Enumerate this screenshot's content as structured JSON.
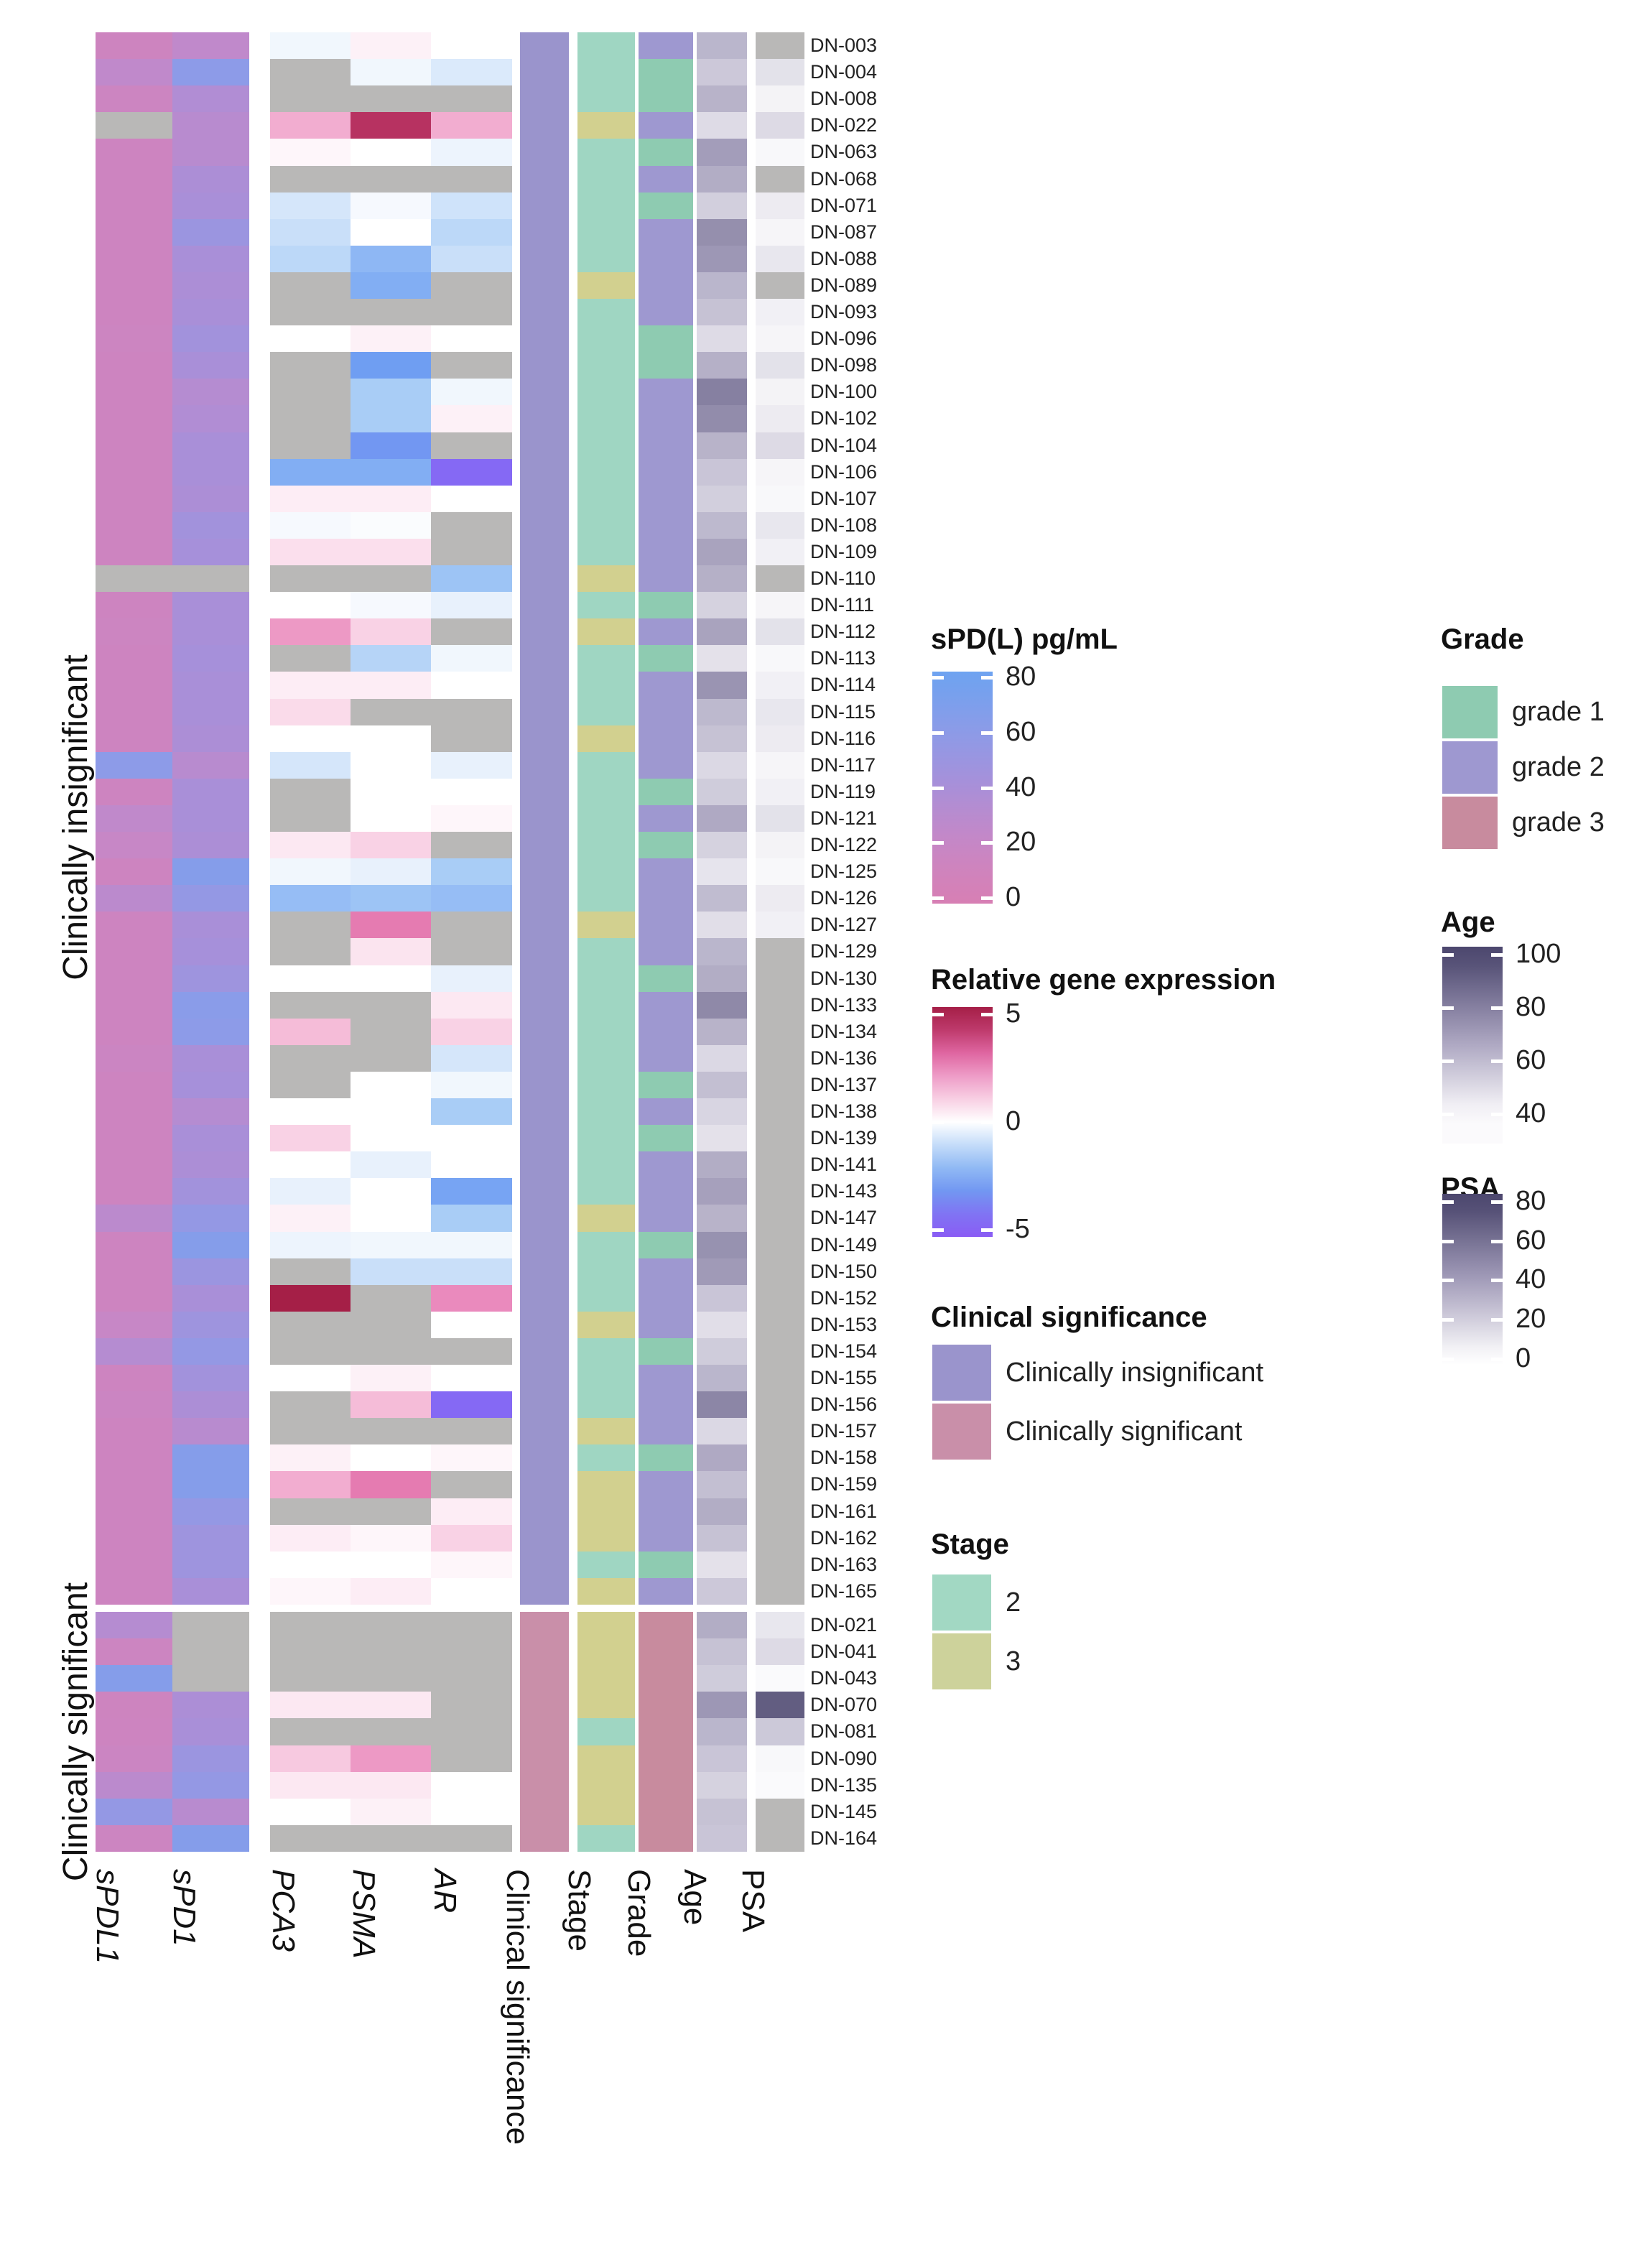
{
  "figure": {
    "left_group_labels": [
      "Clinically insignificant",
      "Clinically significant"
    ]
  },
  "chart_data": {
    "type": "heatmap",
    "title": "",
    "columns": [
      {
        "key": "spdl1",
        "label": "sPDL1",
        "italic": true,
        "scale": "spdl"
      },
      {
        "key": "spd1",
        "label": "sPD1",
        "italic": true,
        "scale": "spdl"
      },
      {
        "key": "pca3",
        "label": "PCA3",
        "italic": true,
        "scale": "gene"
      },
      {
        "key": "psma",
        "label": "PSMA",
        "italic": true,
        "scale": "gene"
      },
      {
        "key": "ar",
        "label": "AR",
        "italic": true,
        "scale": "gene"
      },
      {
        "key": "clinsig",
        "label": "Clinical significance",
        "italic": false,
        "scale": "clinsig"
      },
      {
        "key": "stage",
        "label": "Stage",
        "italic": false,
        "scale": "stage"
      },
      {
        "key": "grade",
        "label": "Grade",
        "italic": false,
        "scale": "grade"
      },
      {
        "key": "age",
        "label": "Age",
        "italic": false,
        "scale": "age"
      },
      {
        "key": "psa",
        "label": "PSA",
        "italic": false,
        "scale": "psa"
      }
    ],
    "groups": [
      {
        "id": 1,
        "label": "Clinically insignificant"
      },
      {
        "id": 2,
        "label": "Clinically significant"
      }
    ],
    "row_format": [
      "id",
      "group",
      "spdl1",
      "spd1",
      "pca3",
      "psma",
      "ar",
      "stage",
      "grade",
      "age",
      "psa"
    ],
    "rows": [
      [
        "DN-003",
        1,
        12,
        25,
        -0.3,
        0.3,
        0,
        2,
        2,
        62,
        null
      ],
      [
        "DN-004",
        1,
        25,
        60,
        null,
        -0.3,
        -0.7,
        2,
        1,
        56,
        12
      ],
      [
        "DN-008",
        1,
        14,
        35,
        null,
        null,
        null,
        2,
        1,
        63,
        5
      ],
      [
        "DN-022",
        1,
        null,
        30,
        1.8,
        4.5,
        1.8,
        3,
        2,
        50,
        15
      ],
      [
        "DN-063",
        1,
        13,
        30,
        0.2,
        0,
        -0.4,
        2,
        1,
        70,
        3
      ],
      [
        "DN-068",
        1,
        13,
        38,
        null,
        null,
        null,
        2,
        2,
        65,
        null
      ],
      [
        "DN-071",
        1,
        13,
        40,
        -0.8,
        -0.2,
        -0.9,
        2,
        1,
        54,
        8
      ],
      [
        "DN-087",
        1,
        13,
        50,
        -1,
        0,
        -1.2,
        2,
        2,
        75,
        4
      ],
      [
        "DN-088",
        1,
        13,
        40,
        -1.2,
        -2.2,
        -1,
        2,
        2,
        72,
        10
      ],
      [
        "DN-089",
        1,
        13,
        38,
        null,
        -2.5,
        null,
        3,
        2,
        62,
        null
      ],
      [
        "DN-093",
        1,
        13,
        40,
        null,
        null,
        null,
        2,
        2,
        58,
        6
      ],
      [
        "DN-096",
        1,
        14,
        45,
        0,
        0.3,
        0,
        2,
        1,
        50,
        4
      ],
      [
        "DN-098",
        1,
        13,
        40,
        null,
        -3,
        null,
        2,
        1,
        64,
        12
      ],
      [
        "DN-100",
        1,
        13,
        32,
        null,
        -1.5,
        -0.3,
        2,
        2,
        80,
        5
      ],
      [
        "DN-102",
        1,
        13,
        35,
        null,
        -1.5,
        0.3,
        2,
        2,
        76,
        8
      ],
      [
        "DN-104",
        1,
        13,
        40,
        null,
        -3.2,
        null,
        2,
        2,
        63,
        15
      ],
      [
        "DN-106",
        1,
        13,
        40,
        -2.5,
        -2.5,
        -4.6,
        2,
        2,
        57,
        4
      ],
      [
        "DN-107",
        1,
        13,
        38,
        0.4,
        0.4,
        0,
        2,
        2,
        54,
        3
      ],
      [
        "DN-108",
        1,
        13,
        45,
        -0.2,
        -0.1,
        null,
        2,
        2,
        61,
        10
      ],
      [
        "DN-109",
        1,
        13,
        42,
        0.7,
        0.7,
        null,
        2,
        2,
        68,
        6
      ],
      [
        "DN-110",
        1,
        null,
        null,
        null,
        null,
        -1.8,
        3,
        2,
        64,
        null
      ],
      [
        "DN-111",
        1,
        13,
        40,
        0,
        -0.2,
        -0.5,
        2,
        1,
        53,
        4
      ],
      [
        "DN-112",
        1,
        14,
        40,
        2.2,
        1,
        null,
        3,
        2,
        68,
        12
      ],
      [
        "DN-113",
        1,
        13,
        42,
        null,
        -1.3,
        -0.3,
        2,
        1,
        48,
        3
      ],
      [
        "DN-114",
        1,
        13,
        40,
        0.4,
        0.4,
        0,
        2,
        2,
        73,
        6
      ],
      [
        "DN-115",
        1,
        13,
        40,
        0.8,
        null,
        null,
        2,
        2,
        61,
        10
      ],
      [
        "DN-116",
        1,
        13,
        38,
        0,
        0,
        null,
        3,
        2,
        58,
        8
      ],
      [
        "DN-117",
        1,
        60,
        30,
        -0.8,
        0,
        -0.5,
        2,
        2,
        51,
        4
      ],
      [
        "DN-119",
        1,
        13,
        40,
        null,
        0,
        0,
        2,
        1,
        55,
        6
      ],
      [
        "DN-121",
        1,
        25,
        40,
        null,
        0,
        0.2,
        2,
        2,
        66,
        12
      ],
      [
        "DN-122",
        1,
        20,
        38,
        0.5,
        1,
        null,
        2,
        1,
        53,
        5
      ],
      [
        "DN-125",
        1,
        13,
        65,
        -0.3,
        -0.5,
        -1.5,
        2,
        2,
        47,
        3
      ],
      [
        "DN-126",
        1,
        28,
        55,
        -2,
        -1.8,
        -2,
        2,
        2,
        60,
        8
      ],
      [
        "DN-127",
        1,
        13,
        40,
        null,
        2.8,
        null,
        3,
        2,
        49,
        6
      ],
      [
        "DN-129",
        1,
        13,
        42,
        null,
        0.6,
        null,
        2,
        2,
        62,
        null
      ],
      [
        "DN-130",
        1,
        13,
        48,
        0,
        0,
        -0.5,
        2,
        1,
        65,
        null
      ],
      [
        "DN-133",
        1,
        13,
        62,
        null,
        null,
        0.5,
        2,
        2,
        77,
        null
      ],
      [
        "DN-134",
        1,
        13,
        60,
        1.5,
        null,
        1,
        2,
        2,
        63,
        null
      ],
      [
        "DN-136",
        1,
        15,
        40,
        null,
        null,
        -0.8,
        2,
        2,
        51,
        null
      ],
      [
        "DN-137",
        1,
        13,
        42,
        null,
        0,
        -0.3,
        2,
        1,
        59,
        null
      ],
      [
        "DN-138",
        1,
        13,
        32,
        0,
        0,
        -1.5,
        2,
        2,
        52,
        null
      ],
      [
        "DN-139",
        1,
        13,
        40,
        1,
        0,
        0,
        2,
        1,
        48,
        null
      ],
      [
        "DN-141",
        1,
        13,
        38,
        0,
        -0.5,
        0,
        2,
        2,
        65,
        null
      ],
      [
        "DN-143",
        1,
        13,
        45,
        -0.5,
        0,
        -2.8,
        2,
        2,
        69,
        null
      ],
      [
        "DN-147",
        1,
        28,
        55,
        0.3,
        0,
        -1.5,
        3,
        2,
        63,
        null
      ],
      [
        "DN-149",
        1,
        13,
        65,
        -0.4,
        -0.3,
        -0.3,
        2,
        1,
        74,
        null
      ],
      [
        "DN-150",
        1,
        13,
        50,
        null,
        -1,
        -1,
        2,
        2,
        71,
        null
      ],
      [
        "DN-152",
        1,
        13,
        40,
        5,
        null,
        2.5,
        2,
        2,
        57,
        null
      ],
      [
        "DN-153",
        1,
        20,
        48,
        null,
        null,
        0,
        3,
        2,
        49,
        null
      ],
      [
        "DN-154",
        1,
        32,
        55,
        null,
        null,
        null,
        2,
        1,
        55,
        null
      ],
      [
        "DN-155",
        1,
        13,
        45,
        0,
        0.3,
        0,
        2,
        2,
        62,
        null
      ],
      [
        "DN-156",
        1,
        15,
        38,
        null,
        1.5,
        -4.6,
        2,
        2,
        78,
        null
      ],
      [
        "DN-157",
        1,
        13,
        30,
        null,
        null,
        null,
        3,
        2,
        51,
        null
      ],
      [
        "DN-158",
        1,
        13,
        65,
        0.3,
        0,
        0.2,
        2,
        1,
        66,
        null
      ],
      [
        "DN-159",
        1,
        13,
        65,
        1.8,
        2.8,
        null,
        3,
        2,
        59,
        null
      ],
      [
        "DN-161",
        1,
        13,
        55,
        null,
        null,
        0.4,
        3,
        2,
        65,
        null
      ],
      [
        "DN-162",
        1,
        13,
        48,
        0.4,
        0.2,
        1,
        3,
        2,
        58,
        null
      ],
      [
        "DN-163",
        1,
        13,
        48,
        0,
        0,
        0.2,
        2,
        1,
        48,
        null
      ],
      [
        "DN-165",
        1,
        13,
        40,
        0.2,
        0.4,
        0,
        3,
        2,
        56,
        null
      ],
      [
        "DN-021",
        2,
        32,
        null,
        null,
        null,
        null,
        3,
        3,
        65,
        10
      ],
      [
        "DN-041",
        2,
        14,
        null,
        null,
        null,
        null,
        3,
        3,
        58,
        15
      ],
      [
        "DN-043",
        2,
        65,
        null,
        null,
        null,
        null,
        3,
        3,
        55,
        2
      ],
      [
        "DN-070",
        2,
        12,
        38,
        0.5,
        0.5,
        null,
        3,
        3,
        72,
        70
      ],
      [
        "DN-081",
        2,
        13,
        40,
        null,
        null,
        null,
        2,
        3,
        62,
        22
      ],
      [
        "DN-090",
        2,
        15,
        50,
        1.2,
        2.2,
        null,
        3,
        3,
        57,
        3
      ],
      [
        "DN-135",
        2,
        28,
        55,
        0.5,
        0.5,
        0,
        3,
        3,
        53,
        2
      ],
      [
        "DN-145",
        2,
        55,
        30,
        0,
        0.3,
        0,
        3,
        3,
        58,
        null
      ],
      [
        "DN-164",
        2,
        14,
        65,
        null,
        null,
        null,
        2,
        3,
        57,
        null
      ]
    ],
    "scales": {
      "na_color": "#b9b8b7",
      "spdl": {
        "domain": [
          0,
          80
        ],
        "stops": [
          [
            0,
            "#d77fb4"
          ],
          [
            20,
            "#c787c6"
          ],
          [
            40,
            "#a98fd8"
          ],
          [
            60,
            "#8d9be8"
          ],
          [
            80,
            "#6ea3f0"
          ]
        ]
      },
      "gene": {
        "domain": [
          -5,
          5
        ],
        "stops": [
          [
            -5,
            "#8a5cf4"
          ],
          [
            -3,
            "#6f9ef2"
          ],
          [
            -1.5,
            "#a9cdf6"
          ],
          [
            -0.5,
            "#e8f1fc"
          ],
          [
            0,
            "#ffffff"
          ],
          [
            0.5,
            "#fce8f2"
          ],
          [
            1.5,
            "#f5bcd8"
          ],
          [
            2.5,
            "#ea8abd"
          ],
          [
            3.5,
            "#da5795"
          ],
          [
            5,
            "#a51f47"
          ]
        ]
      },
      "age": {
        "domain": [
          40,
          100
        ],
        "stops": [
          [
            40,
            "#fbfafc"
          ],
          [
            70,
            "#a39dba"
          ],
          [
            100,
            "#4c476e"
          ]
        ]
      },
      "psa": {
        "domain": [
          0,
          80
        ],
        "stops": [
          [
            0,
            "#ffffff"
          ],
          [
            40,
            "#a39dba"
          ],
          [
            80,
            "#4c476e"
          ]
        ]
      },
      "clinsig": {
        "1": "#9a94cc",
        "2": "#c98fa9"
      },
      "stage": {
        "2": "#9fd6c2",
        "3": "#d2d08f"
      },
      "grade": {
        "1": "#8ecbb1",
        "2": "#9e98d0",
        "3": "#c88b9e"
      }
    },
    "legends": {
      "spdl": {
        "title": "sPD(L) pg/mL",
        "ticks": [
          80,
          60,
          40,
          20,
          0
        ]
      },
      "gene": {
        "title": "Relative gene expression",
        "ticks": [
          5,
          0,
          -5
        ]
      },
      "clinsig": {
        "title": "Clinical significance",
        "entries": [
          {
            "label": "Clinically insignificant",
            "color": "#9a94cc"
          },
          {
            "label": "Clinically significant",
            "color": "#c98fa9"
          }
        ]
      },
      "stage": {
        "title": "Stage",
        "entries": [
          {
            "label": "2",
            "color": "#a2d8c3"
          },
          {
            "label": "3",
            "color": "#cdd29b"
          }
        ]
      },
      "grade": {
        "title": "Grade",
        "entries": [
          {
            "label": "grade 1",
            "color": "#8ecbb1"
          },
          {
            "label": "grade 2",
            "color": "#9e98d0"
          },
          {
            "label": "grade 3",
            "color": "#c88b9e"
          }
        ]
      },
      "age": {
        "title": "Age",
        "ticks": [
          100,
          80,
          60,
          40
        ]
      },
      "psa": {
        "title": "PSA",
        "ticks": [
          80,
          60,
          40,
          20,
          0
        ]
      }
    }
  }
}
